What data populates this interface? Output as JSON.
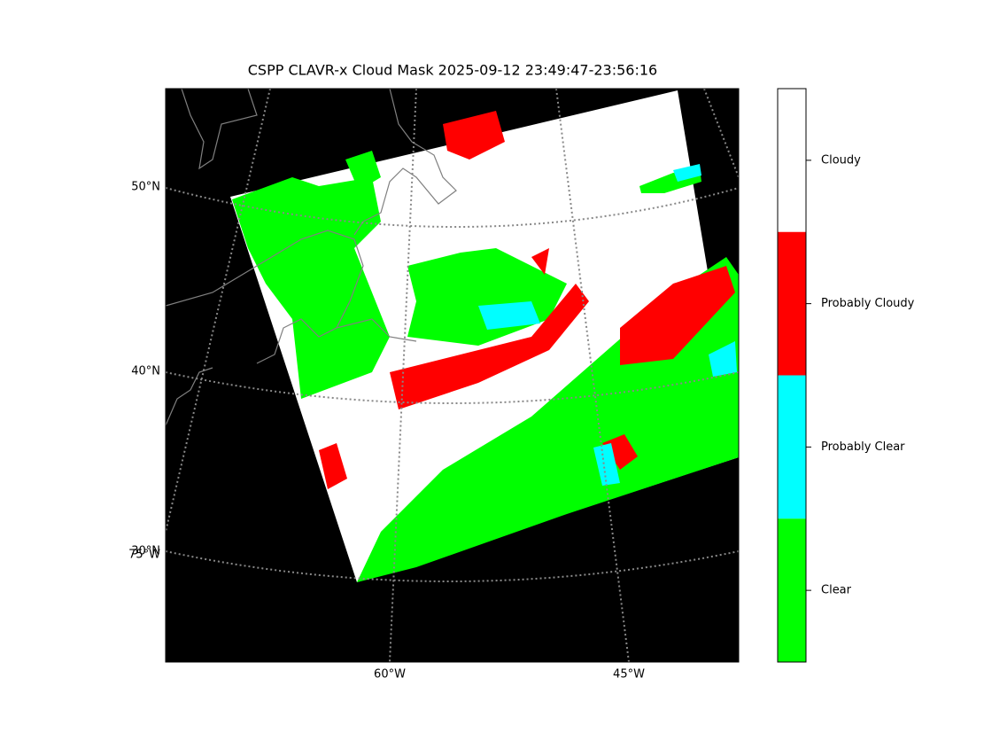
{
  "title": "CSPP CLAVR-x Cloud Mask 2025-09-12 23:49:47-23:56:16",
  "map": {
    "lat_labels": [
      "50°N",
      "40°N",
      "30°N"
    ],
    "lon_labels": [
      "75°W",
      "60°W",
      "45°W"
    ],
    "background": "#000000",
    "graticule_color": "#888888",
    "coast_color": "#808080"
  },
  "colorbar": {
    "categories": [
      {
        "label": "Cloudy",
        "color": "#ffffff"
      },
      {
        "label": "Probably Cloudy",
        "color": "#ff0000"
      },
      {
        "label": "Probably Clear",
        "color": "#00ffff"
      },
      {
        "label": "Clear",
        "color": "#00ff00"
      }
    ]
  }
}
